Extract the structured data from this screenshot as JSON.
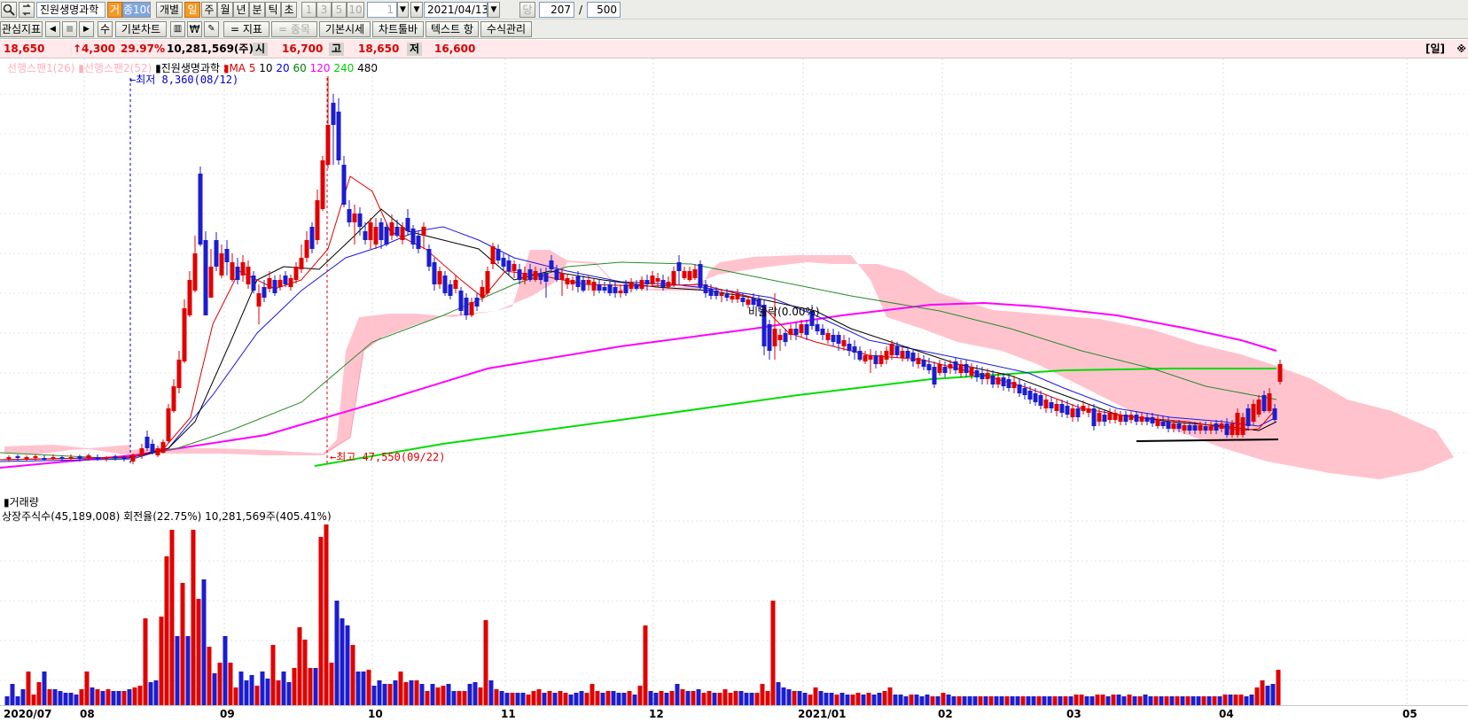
{
  "toolbar": {
    "search_icon": "magnifier-icon",
    "refresh_icon": "refresh-icon",
    "stock_name": "진원생명과학",
    "vol_label": "거",
    "vol_value": "종100",
    "individual": "개별",
    "period_buttons": [
      "일",
      "주",
      "월",
      "년",
      "분",
      "틱",
      "초"
    ],
    "active_period": "일",
    "interval_buttons": [
      "1",
      "3",
      "5",
      "10"
    ],
    "spin_value": "1",
    "date": "2021/04/13",
    "dang": "당",
    "count_value": "207",
    "slash": "/",
    "total_value": "500"
  },
  "toolbar2": {
    "interest": "관심지표",
    "su": "수",
    "basic_chart": "기본차트",
    "won": "₩",
    "indicator": "= 지표",
    "stock_item": "= 종목",
    "basic_quote": "기본시세",
    "chart_toolbar": "차트툴바",
    "text_item": "텍스트 항",
    "formula": "수식관리"
  },
  "quote": {
    "price": "18,650",
    "change": "↑4,300",
    "change_pct": "29.97%",
    "volume": "10,281,569(주)",
    "open_label": "시",
    "open": "16,700",
    "high_label": "고",
    "high": "18,650",
    "low_label": "저",
    "low": "16,600",
    "period_right": "[일]"
  },
  "legend": {
    "span1": "선행스팬1(26)",
    "span2": "선행스팬2(52)",
    "name": "진원생명과학",
    "ma_label": "MA",
    "ma_periods": [
      "5",
      "10",
      "20",
      "60",
      "120",
      "240",
      "480"
    ],
    "ma_colors": [
      "#e00000",
      "#000000",
      "#0000ee",
      "#008000",
      "#ff00ff",
      "#00cc00",
      "#000000"
    ]
  },
  "annotations": {
    "low": "←최저 8,360(08/12)",
    "high": "←최고 47,550(09/22)",
    "ratio": "비율락(0.00%)"
  },
  "volume_panel": {
    "title": "거래량",
    "info": "상장주식수(45,189,008) 회전율(22.75%) 10,281,569주(405.41%)"
  },
  "x_axis": {
    "labels": [
      "2020/07",
      "08",
      "09",
      "10",
      "11",
      "12",
      "2021/01",
      "02",
      "03",
      "04",
      "05"
    ]
  },
  "colors": {
    "up": "#e00000",
    "down": "#1c1cd0",
    "cloud": "#ffc0cb",
    "accent": "#f39a2a"
  }
}
